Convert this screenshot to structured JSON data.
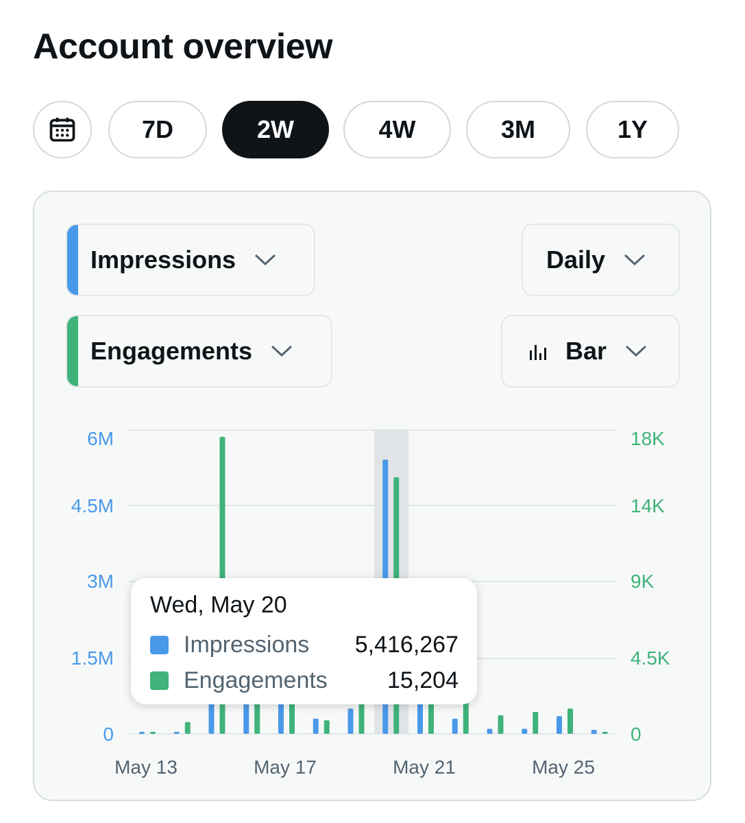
{
  "page": {
    "title": "Account overview"
  },
  "range_pills": {
    "calendar_icon": "calendar-icon",
    "items": [
      "7D",
      "2W",
      "4W",
      "3M",
      "1Y"
    ],
    "active": "2W"
  },
  "controls": {
    "metric1": {
      "label": "Impressions",
      "color": "#4a99e9"
    },
    "metric2": {
      "label": "Engagements",
      "color": "#3fb37a"
    },
    "interval": {
      "label": "Daily"
    },
    "chart_type": {
      "label": "Bar",
      "icon": "bar-chart-icon"
    }
  },
  "tooltip": {
    "date": "Wed, May 20",
    "rows": [
      {
        "name": "Impressions",
        "value": "5,416,267",
        "color": "#4a99e9"
      },
      {
        "name": "Engagements",
        "value": "15,204",
        "color": "#3fb37a"
      }
    ]
  },
  "chart_data": {
    "type": "bar",
    "categories": [
      "May 13",
      "May 14",
      "May 15",
      "May 16",
      "May 17",
      "May 18",
      "May 19",
      "May 20",
      "May 21",
      "May 22",
      "May 23",
      "May 24",
      "May 25",
      "May 26"
    ],
    "x_tick_labels": [
      "May 13",
      "May 17",
      "May 21",
      "May 25"
    ],
    "series": [
      {
        "name": "Impressions",
        "axis": "left",
        "color": "#4a99e9",
        "values": [
          30000,
          30000,
          1500000,
          2800000,
          1800000,
          300000,
          500000,
          5416267,
          1800000,
          300000,
          100000,
          100000,
          350000,
          80000
        ]
      },
      {
        "name": "Engagements",
        "axis": "right",
        "color": "#3fb37a",
        "values": [
          30,
          700,
          17600,
          5200,
          5200,
          800,
          5500,
          15204,
          5200,
          5500,
          1100,
          1300,
          1500,
          100
        ]
      }
    ],
    "y_left": {
      "ticks": [
        "6M",
        "4.5M",
        "3M",
        "1.5M",
        "0"
      ],
      "values": [
        6000000,
        4500000,
        3000000,
        1500000,
        0
      ],
      "range": [
        0,
        6000000
      ]
    },
    "y_right": {
      "ticks": [
        "18K",
        "14K",
        "9K",
        "4.5K",
        "0"
      ],
      "values": [
        18000,
        13500,
        9000,
        4500,
        0
      ],
      "range": [
        0,
        18000
      ]
    },
    "highlighted_category": "May 20",
    "grid": true
  }
}
